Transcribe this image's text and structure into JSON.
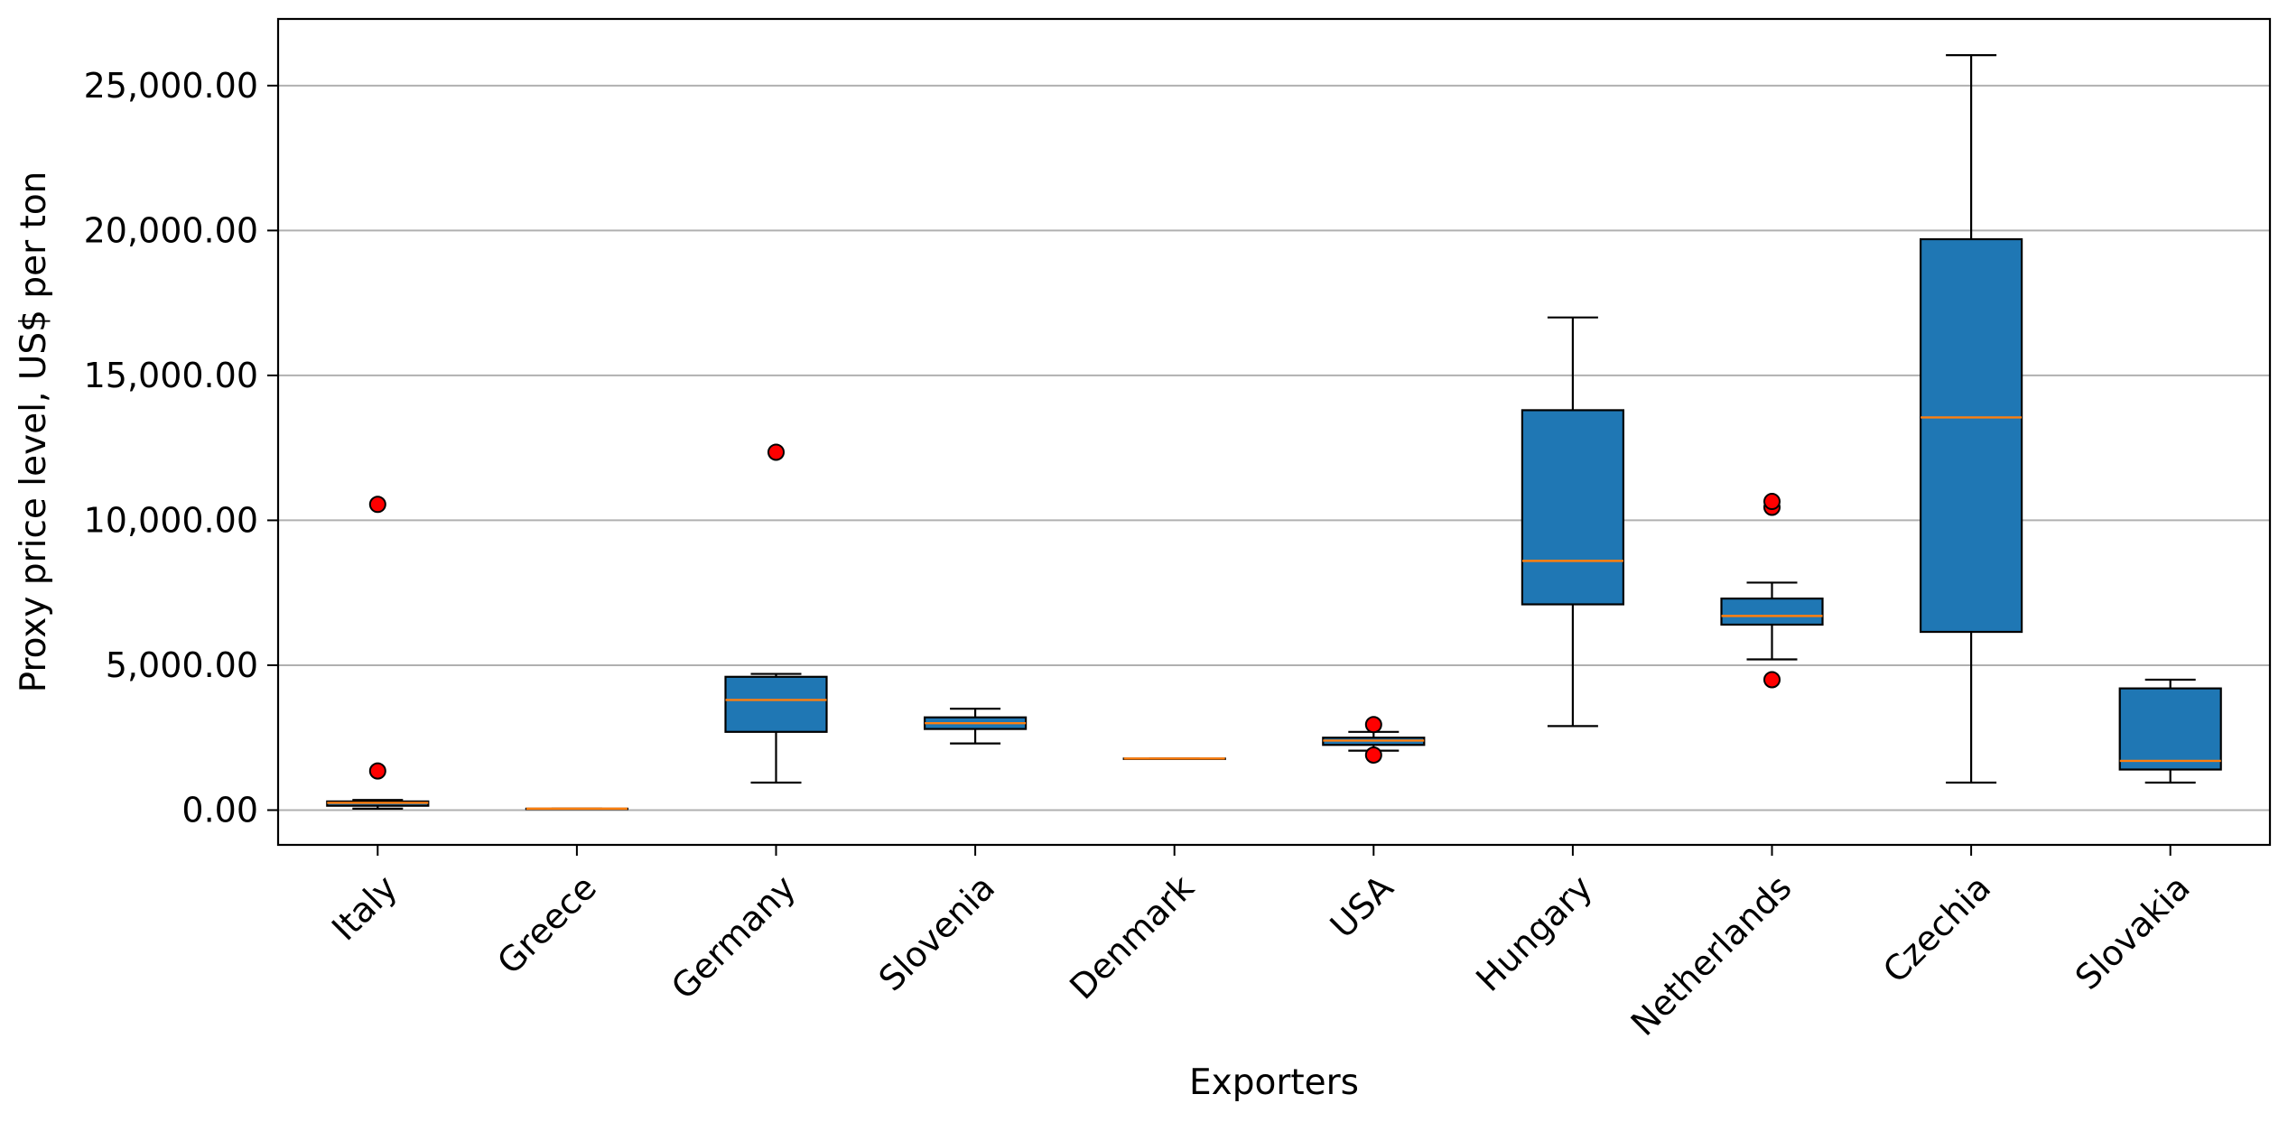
{
  "chart_data": {
    "type": "box",
    "xlabel": "Exporters",
    "ylabel": "Proxy price level, US$ per ton",
    "ylim": [
      -1200,
      27300
    ],
    "yticks": [
      0,
      5000,
      10000,
      15000,
      20000,
      25000
    ],
    "ytick_labels": [
      "0.00",
      "5,000.00",
      "10,000.00",
      "15,000.00",
      "20,000.00",
      "25,000.00"
    ],
    "grid": "horizontal",
    "categories": [
      "Italy",
      "Greece",
      "Germany",
      "Slovenia",
      "Denmark",
      "USA",
      "Hungary",
      "Netherlands",
      "Czechia",
      "Slovakia"
    ],
    "boxes": [
      {
        "name": "Italy",
        "whisker_low": 50,
        "q1": 150,
        "median": 250,
        "q3": 300,
        "whisker_high": 350,
        "outliers": [
          1350,
          10550
        ]
      },
      {
        "name": "Greece",
        "whisker_low": 50,
        "q1": 50,
        "median": 50,
        "q3": 50,
        "whisker_high": 50,
        "outliers": []
      },
      {
        "name": "Germany",
        "whisker_low": 950,
        "q1": 2700,
        "median": 3800,
        "q3": 4600,
        "whisker_high": 4700,
        "outliers": [
          12350
        ]
      },
      {
        "name": "Slovenia",
        "whisker_low": 2300,
        "q1": 2800,
        "median": 3000,
        "q3": 3200,
        "whisker_high": 3500,
        "outliers": []
      },
      {
        "name": "Denmark",
        "whisker_low": 1780,
        "q1": 1780,
        "median": 1780,
        "q3": 1780,
        "whisker_high": 1780,
        "outliers": []
      },
      {
        "name": "USA",
        "whisker_low": 2050,
        "q1": 2250,
        "median": 2400,
        "q3": 2500,
        "whisker_high": 2700,
        "outliers": [
          1900,
          2950
        ]
      },
      {
        "name": "Hungary",
        "whisker_low": 2900,
        "q1": 7100,
        "median": 8600,
        "q3": 13800,
        "whisker_high": 17000,
        "outliers": []
      },
      {
        "name": "Netherlands",
        "whisker_low": 5200,
        "q1": 6400,
        "median": 6700,
        "q3": 7300,
        "whisker_high": 7850,
        "outliers": [
          4500,
          10450,
          10650
        ]
      },
      {
        "name": "Czechia",
        "whisker_low": 950,
        "q1": 6150,
        "median": 13550,
        "q3": 19700,
        "whisker_high": 26050,
        "outliers": []
      },
      {
        "name": "Slovakia",
        "whisker_low": 950,
        "q1": 1400,
        "median": 1700,
        "q3": 4200,
        "whisker_high": 4500,
        "outliers": []
      }
    ],
    "colors": {
      "box_fill": "#1f77b4",
      "box_edge": "#000000",
      "median": "#ff7f0e",
      "outlier_fill": "#ff0000",
      "grid": "#b0b0b0"
    }
  }
}
